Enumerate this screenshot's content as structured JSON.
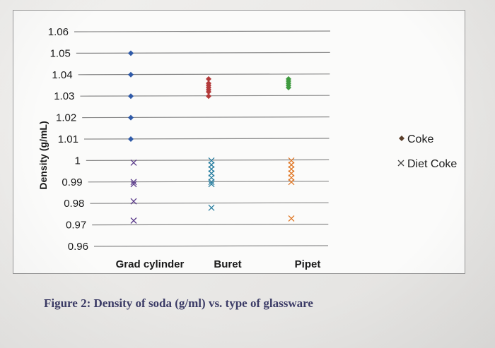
{
  "caption": "Figure 2: Density of soda (g/ml) vs. type of glassware",
  "colors": {
    "gridline": "#8a8a8a",
    "text": "#1a1a1a",
    "coke_grad": "#2f5aa8",
    "coke_buret": "#b33a3a",
    "coke_pipet": "#3f9a3f",
    "diet_grad": "#5a3a8a",
    "diet_buret": "#2a7fa0",
    "diet_pipet": "#e07a2a"
  },
  "chart_data": {
    "type": "scatter",
    "ylabel": "Density (g/mL)",
    "xlabel": "",
    "ylim": [
      0.96,
      1.06
    ],
    "yticks": [
      "1.06",
      "1.05",
      "1.04",
      "1.03",
      "1.02",
      "1.01",
      "1",
      "0.99",
      "0.98",
      "0.97",
      "0.96"
    ],
    "categories": [
      "Grad cylinder",
      "Buret",
      "Pipet"
    ],
    "grid": true,
    "legend_position": "right",
    "series": [
      {
        "name": "Coke",
        "marker": "diamond",
        "points": [
          {
            "x": "Grad cylinder",
            "y": 1.05
          },
          {
            "x": "Grad cylinder",
            "y": 1.04
          },
          {
            "x": "Grad cylinder",
            "y": 1.03
          },
          {
            "x": "Grad cylinder",
            "y": 1.02
          },
          {
            "x": "Grad cylinder",
            "y": 1.01
          },
          {
            "x": "Buret",
            "y": 1.038
          },
          {
            "x": "Buret",
            "y": 1.036
          },
          {
            "x": "Buret",
            "y": 1.035
          },
          {
            "x": "Buret",
            "y": 1.034
          },
          {
            "x": "Buret",
            "y": 1.033
          },
          {
            "x": "Buret",
            "y": 1.032
          },
          {
            "x": "Buret",
            "y": 1.03
          },
          {
            "x": "Pipet",
            "y": 1.038
          },
          {
            "x": "Pipet",
            "y": 1.037
          },
          {
            "x": "Pipet",
            "y": 1.036
          },
          {
            "x": "Pipet",
            "y": 1.035
          },
          {
            "x": "Pipet",
            "y": 1.034
          }
        ]
      },
      {
        "name": "Diet Coke",
        "marker": "x",
        "points": [
          {
            "x": "Grad cylinder",
            "y": 0.999
          },
          {
            "x": "Grad cylinder",
            "y": 0.99
          },
          {
            "x": "Grad cylinder",
            "y": 0.989
          },
          {
            "x": "Grad cylinder",
            "y": 0.981
          },
          {
            "x": "Grad cylinder",
            "y": 0.972
          },
          {
            "x": "Buret",
            "y": 1.0
          },
          {
            "x": "Buret",
            "y": 0.998
          },
          {
            "x": "Buret",
            "y": 0.996
          },
          {
            "x": "Buret",
            "y": 0.994
          },
          {
            "x": "Buret",
            "y": 0.992
          },
          {
            "x": "Buret",
            "y": 0.99
          },
          {
            "x": "Buret",
            "y": 0.989
          },
          {
            "x": "Buret",
            "y": 0.978
          },
          {
            "x": "Pipet",
            "y": 1.0
          },
          {
            "x": "Pipet",
            "y": 0.998
          },
          {
            "x": "Pipet",
            "y": 0.996
          },
          {
            "x": "Pipet",
            "y": 0.994
          },
          {
            "x": "Pipet",
            "y": 0.992
          },
          {
            "x": "Pipet",
            "y": 0.99
          },
          {
            "x": "Pipet",
            "y": 0.973
          }
        ]
      }
    ]
  }
}
